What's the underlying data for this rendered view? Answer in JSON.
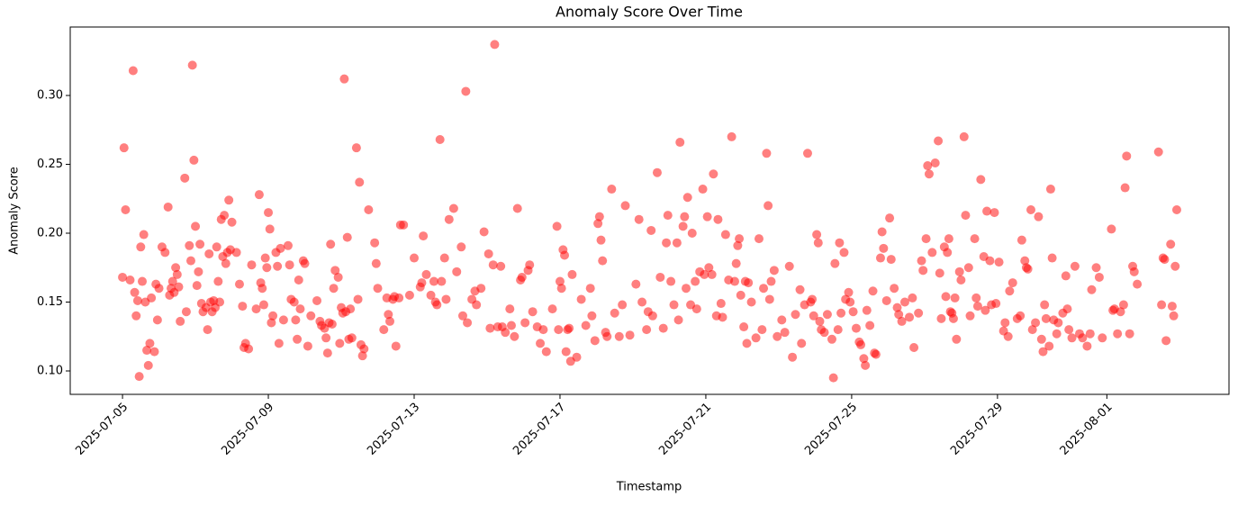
{
  "chart_data": {
    "type": "scatter",
    "title": "Anomaly Score Over Time",
    "x_label": "Timestamp",
    "y_label": "Anomaly Score",
    "color": "#ff0000",
    "alpha": 0.5,
    "grid": false,
    "xlim": [
      "2025-07-03 13:35",
      "2025-08-04 08:24"
    ],
    "xticks": [
      "2025-07-05",
      "2025-07-09",
      "2025-07-13",
      "2025-07-17",
      "2025-07-21",
      "2025-07-25",
      "2025-07-29",
      "2025-08-01"
    ],
    "ylim": [
      0.083,
      0.3497
    ],
    "yticks": [
      {
        "value": 0.1,
        "label": "0.10"
      },
      0.15,
      {
        "value": 0.2,
        "label": "0.20"
      },
      0.25,
      {
        "value": 0.3,
        "label": "0.30"
      }
    ],
    "x": [
      "2025-07-05 00:00",
      "2025-07-05 01:00",
      "2025-07-05 02:00",
      "2025-07-05 05:00",
      "2025-07-05 07:00",
      "2025-07-05 08:00",
      "2025-07-05 09:00",
      "2025-07-05 10:00",
      "2025-07-05 11:00",
      "2025-07-05 12:00",
      "2025-07-05 13:00",
      "2025-07-05 14:00",
      "2025-07-05 15:00",
      "2025-07-05 16:00",
      "2025-07-05 17:00",
      "2025-07-05 18:00",
      "2025-07-05 19:00",
      "2025-07-05 21:00",
      "2025-07-05 22:00",
      "2025-07-05 23:00",
      "2025-07-06 00:00",
      "2025-07-06 02:00",
      "2025-07-06 04:00",
      "2025-07-06 06:00",
      "2025-07-06 07:00",
      "2025-07-06 08:00",
      "2025-07-06 09:00",
      "2025-07-06 10:00",
      "2025-07-06 11:00",
      "2025-07-06 12:00",
      "2025-07-06 13:00",
      "2025-07-06 14:00",
      "2025-07-06 17:00",
      "2025-07-06 18:00",
      "2025-07-06 20:00",
      "2025-07-06 21:00",
      "2025-07-06 22:00",
      "2025-07-06 23:00",
      "2025-07-07 00:00",
      "2025-07-07 01:00",
      "2025-07-07 02:00",
      "2025-07-07 03:00",
      "2025-07-07 04:00",
      "2025-07-07 05:00",
      "2025-07-07 07:00",
      "2025-07-07 08:00",
      "2025-07-07 09:00",
      "2025-07-07 10:00",
      "2025-07-07 11:00",
      "2025-07-07 12:00",
      "2025-07-07 13:00",
      "2025-07-07 14:00",
      "2025-07-07 15:00",
      "2025-07-07 16:00",
      "2025-07-07 17:00",
      "2025-07-07 18:00",
      "2025-07-07 19:00",
      "2025-07-07 20:00",
      "2025-07-07 21:00",
      "2025-07-07 22:00",
      "2025-07-07 23:00",
      "2025-07-08 00:00",
      "2025-07-08 03:00",
      "2025-07-08 05:00",
      "2025-07-08 07:00",
      "2025-07-08 08:00",
      "2025-07-08 09:00",
      "2025-07-08 11:00",
      "2025-07-08 13:00",
      "2025-07-08 16:00",
      "2025-07-08 18:00",
      "2025-07-08 19:00",
      "2025-07-08 20:00",
      "2025-07-08 21:00",
      "2025-07-08 22:00",
      "2025-07-08 23:00",
      "2025-07-09 00:00",
      "2025-07-09 01:00",
      "2025-07-09 02:00",
      "2025-07-09 03:00",
      "2025-07-09 05:00",
      "2025-07-09 06:00",
      "2025-07-09 07:00",
      "2025-07-09 08:00",
      "2025-07-09 10:00",
      "2025-07-09 13:00",
      "2025-07-09 14:00",
      "2025-07-09 15:00",
      "2025-07-09 17:00",
      "2025-07-09 18:00",
      "2025-07-09 19:00",
      "2025-07-09 20:00",
      "2025-07-09 21:00",
      "2025-07-09 23:00",
      "2025-07-10 00:00",
      "2025-07-10 02:00",
      "2025-07-10 04:00",
      "2025-07-10 08:00",
      "2025-07-10 10:00",
      "2025-07-10 11:00",
      "2025-07-10 13:00",
      "2025-07-10 14:00",
      "2025-07-10 15:00",
      "2025-07-10 16:00",
      "2025-07-10 17:00",
      "2025-07-10 18:00",
      "2025-07-10 19:00",
      "2025-07-10 20:00",
      "2025-07-10 22:00",
      "2025-07-10 23:00",
      "2025-07-11 00:00",
      "2025-07-11 01:00",
      "2025-07-11 02:00",
      "2025-07-11 03:00",
      "2025-07-11 04:00",
      "2025-07-11 05:00",
      "2025-07-11 06:00",
      "2025-07-11 07:00",
      "2025-07-11 10:00",
      "2025-07-11 11:00",
      "2025-07-11 12:00",
      "2025-07-11 13:00",
      "2025-07-11 14:00",
      "2025-07-11 15:00",
      "2025-07-11 18:00",
      "2025-07-11 22:00",
      "2025-07-11 23:00",
      "2025-07-12 00:00",
      "2025-07-12 04:00",
      "2025-07-12 06:00",
      "2025-07-12 07:00",
      "2025-07-12 08:00",
      "2025-07-12 10:00",
      "2025-07-12 11:00",
      "2025-07-12 12:00",
      "2025-07-12 14:00",
      "2025-07-12 15:00",
      "2025-07-12 17:00",
      "2025-07-12 21:00",
      "2025-07-13 00:00",
      "2025-07-13 04:00",
      "2025-07-13 05:00",
      "2025-07-13 06:00",
      "2025-07-13 08:00",
      "2025-07-13 11:00",
      "2025-07-13 13:00",
      "2025-07-13 14:00",
      "2025-07-13 15:00",
      "2025-07-13 17:00",
      "2025-07-13 18:00",
      "2025-07-13 20:00",
      "2025-07-13 21:00",
      "2025-07-13 23:00",
      "2025-07-14 02:00",
      "2025-07-14 04:00",
      "2025-07-14 07:00",
      "2025-07-14 08:00",
      "2025-07-14 10:00",
      "2025-07-14 11:00",
      "2025-07-14 14:00",
      "2025-07-14 16:00",
      "2025-07-14 17:00",
      "2025-07-14 20:00",
      "2025-07-14 22:00",
      "2025-07-15 01:00",
      "2025-07-15 02:00",
      "2025-07-15 04:00",
      "2025-07-15 05:00",
      "2025-07-15 07:00",
      "2025-07-15 09:00",
      "2025-07-15 10:00",
      "2025-07-15 12:00",
      "2025-07-15 15:00",
      "2025-07-15 16:00",
      "2025-07-15 18:00",
      "2025-07-15 20:00",
      "2025-07-15 22:00",
      "2025-07-15 23:00",
      "2025-07-16 01:00",
      "2025-07-16 03:00",
      "2025-07-16 04:00",
      "2025-07-16 06:00",
      "2025-07-16 09:00",
      "2025-07-16 11:00",
      "2025-07-16 13:00",
      "2025-07-16 15:00",
      "2025-07-16 19:00",
      "2025-07-16 22:00",
      "2025-07-16 23:00",
      "2025-07-17 00:00",
      "2025-07-17 01:00",
      "2025-07-17 02:00",
      "2025-07-17 03:00",
      "2025-07-17 04:00",
      "2025-07-17 05:00",
      "2025-07-17 06:00",
      "2025-07-17 07:00",
      "2025-07-17 08:00",
      "2025-07-17 11:00",
      "2025-07-17 14:00",
      "2025-07-17 17:00",
      "2025-07-17 20:00",
      "2025-07-17 21:00",
      "2025-07-17 23:00",
      "2025-07-18 01:00",
      "2025-07-18 02:00",
      "2025-07-18 03:00",
      "2025-07-18 04:00",
      "2025-07-18 06:00",
      "2025-07-18 07:00",
      "2025-07-18 10:00",
      "2025-07-18 12:00",
      "2025-07-18 15:00",
      "2025-07-18 17:00",
      "2025-07-18 19:00",
      "2025-07-18 22:00",
      "2025-07-19 02:00",
      "2025-07-19 04:00",
      "2025-07-19 06:00",
      "2025-07-19 09:00",
      "2025-07-19 10:00",
      "2025-07-19 12:00",
      "2025-07-19 13:00",
      "2025-07-19 16:00",
      "2025-07-19 18:00",
      "2025-07-19 20:00",
      "2025-07-19 22:00",
      "2025-07-19 23:00",
      "2025-07-20 01:00",
      "2025-07-20 03:00",
      "2025-07-20 05:00",
      "2025-07-20 06:00",
      "2025-07-20 07:00",
      "2025-07-20 09:00",
      "2025-07-20 10:00",
      "2025-07-20 11:00",
      "2025-07-20 12:00",
      "2025-07-20 14:00",
      "2025-07-20 15:00",
      "2025-07-20 17:00",
      "2025-07-20 18:00",
      "2025-07-20 20:00",
      "2025-07-20 22:00",
      "2025-07-20 23:00",
      "2025-07-21 01:00",
      "2025-07-21 02:00",
      "2025-07-21 04:00",
      "2025-07-21 05:00",
      "2025-07-21 07:00",
      "2025-07-21 08:00",
      "2025-07-21 10:00",
      "2025-07-21 11:00",
      "2025-07-21 13:00",
      "2025-07-21 15:00",
      "2025-07-21 17:00",
      "2025-07-21 19:00",
      "2025-07-21 20:00",
      "2025-07-21 21:00",
      "2025-07-21 22:00",
      "2025-07-21 23:00",
      "2025-07-22 01:00",
      "2025-07-22 02:00",
      "2025-07-22 03:00",
      "2025-07-22 04:00",
      "2025-07-22 06:00",
      "2025-07-22 09:00",
      "2025-07-22 11:00",
      "2025-07-22 13:00",
      "2025-07-22 14:00",
      "2025-07-22 16:00",
      "2025-07-22 17:00",
      "2025-07-22 18:00",
      "2025-07-22 19:00",
      "2025-07-22 21:00",
      "2025-07-22 23:00",
      "2025-07-23 02:00",
      "2025-07-23 04:00",
      "2025-07-23 07:00",
      "2025-07-23 09:00",
      "2025-07-23 11:00",
      "2025-07-23 14:00",
      "2025-07-23 15:00",
      "2025-07-23 17:00",
      "2025-07-23 19:00",
      "2025-07-23 21:00",
      "2025-07-23 22:00",
      "2025-07-23 23:00",
      "2025-07-24 01:00",
      "2025-07-24 02:00",
      "2025-07-24 03:00",
      "2025-07-24 04:00",
      "2025-07-24 06:00",
      "2025-07-24 08:00",
      "2025-07-24 11:00",
      "2025-07-24 12:00",
      "2025-07-24 13:00",
      "2025-07-24 15:00",
      "2025-07-24 16:00",
      "2025-07-24 17:00",
      "2025-07-24 19:00",
      "2025-07-24 20:00",
      "2025-07-24 22:00",
      "2025-07-24 23:00",
      "2025-07-25 01:00",
      "2025-07-25 03:00",
      "2025-07-25 05:00",
      "2025-07-25 06:00",
      "2025-07-25 08:00",
      "2025-07-25 09:00",
      "2025-07-25 10:00",
      "2025-07-25 12:00",
      "2025-07-25 14:00",
      "2025-07-25 15:00",
      "2025-07-25 16:00",
      "2025-07-25 19:00",
      "2025-07-25 20:00",
      "2025-07-25 21:00",
      "2025-07-25 23:00",
      "2025-07-26 01:00",
      "2025-07-26 02:00",
      "2025-07-26 04:00",
      "2025-07-26 06:00",
      "2025-07-26 07:00",
      "2025-07-26 09:00",
      "2025-07-26 11:00",
      "2025-07-26 14:00",
      "2025-07-26 16:00",
      "2025-07-26 17:00",
      "2025-07-26 20:00",
      "2025-07-26 22:00",
      "2025-07-26 23:00",
      "2025-07-27 01:00",
      "2025-07-27 02:00",
      "2025-07-27 03:00",
      "2025-07-27 05:00",
      "2025-07-27 07:00",
      "2025-07-27 09:00",
      "2025-07-27 10:00",
      "2025-07-27 11:00",
      "2025-07-27 13:00",
      "2025-07-27 14:00",
      "2025-07-27 15:00",
      "2025-07-27 16:00",
      "2025-07-27 17:00",
      "2025-07-27 18:00",
      "2025-07-27 19:00",
      "2025-07-27 20:00",
      "2025-07-27 21:00",
      "2025-07-27 23:00",
      "2025-07-28 00:00",
      "2025-07-28 02:00",
      "2025-07-28 03:00",
      "2025-07-28 05:00",
      "2025-07-28 06:00",
      "2025-07-28 09:00",
      "2025-07-28 10:00",
      "2025-07-28 11:00",
      "2025-07-28 13:00",
      "2025-07-28 15:00",
      "2025-07-28 16:00",
      "2025-07-28 17:00",
      "2025-07-28 19:00",
      "2025-07-28 20:00",
      "2025-07-28 22:00",
      "2025-07-28 23:00",
      "2025-07-29 01:00",
      "2025-07-29 04:00",
      "2025-07-29 05:00",
      "2025-07-29 07:00",
      "2025-07-29 08:00",
      "2025-07-29 10:00",
      "2025-07-29 13:00",
      "2025-07-29 15:00",
      "2025-07-29 16:00",
      "2025-07-29 18:00",
      "2025-07-29 19:00",
      "2025-07-29 20:00",
      "2025-07-29 22:00",
      "2025-07-29 23:00",
      "2025-07-30 01:00",
      "2025-07-30 03:00",
      "2025-07-30 05:00",
      "2025-07-30 06:00",
      "2025-07-30 07:00",
      "2025-07-30 08:00",
      "2025-07-30 10:00",
      "2025-07-30 11:00",
      "2025-07-30 12:00",
      "2025-07-30 13:00",
      "2025-07-30 15:00",
      "2025-07-30 16:00",
      "2025-07-30 19:00",
      "2025-07-30 21:00",
      "2025-07-30 22:00",
      "2025-07-30 23:00",
      "2025-07-31 01:00",
      "2025-07-31 03:00",
      "2025-07-31 06:00",
      "2025-07-31 08:00",
      "2025-07-31 11:00",
      "2025-07-31 13:00",
      "2025-07-31 14:00",
      "2025-07-31 17:00",
      "2025-07-31 19:00",
      "2025-07-31 21:00",
      "2025-08-01 03:00",
      "2025-08-01 04:00",
      "2025-08-01 05:00",
      "2025-08-01 07:00",
      "2025-08-01 09:00",
      "2025-08-01 11:00",
      "2025-08-01 12:00",
      "2025-08-01 13:00",
      "2025-08-01 15:00",
      "2025-08-01 17:00",
      "2025-08-01 18:00",
      "2025-08-01 20:00",
      "2025-08-02 10:00",
      "2025-08-02 12:00",
      "2025-08-02 13:00",
      "2025-08-02 14:00",
      "2025-08-02 15:00",
      "2025-08-02 18:00",
      "2025-08-02 19:00",
      "2025-08-02 20:00",
      "2025-08-02 21:00",
      "2025-08-02 22:00"
    ],
    "values": [
      0.168,
      0.262,
      0.217,
      0.166,
      0.318,
      0.157,
      0.14,
      0.151,
      0.096,
      0.19,
      0.165,
      0.199,
      0.15,
      0.115,
      0.104,
      0.12,
      0.153,
      0.114,
      0.163,
      0.137,
      0.16,
      0.19,
      0.186,
      0.219,
      0.155,
      0.16,
      0.165,
      0.157,
      0.175,
      0.17,
      0.161,
      0.136,
      0.24,
      0.143,
      0.191,
      0.18,
      0.322,
      0.253,
      0.205,
      0.162,
      0.172,
      0.192,
      0.149,
      0.143,
      0.146,
      0.13,
      0.185,
      0.15,
      0.143,
      0.151,
      0.146,
      0.19,
      0.165,
      0.15,
      0.21,
      0.183,
      0.213,
      0.178,
      0.186,
      0.224,
      0.188,
      0.208,
      0.186,
      0.163,
      0.147,
      0.117,
      0.12,
      0.116,
      0.177,
      0.145,
      0.228,
      0.164,
      0.16,
      0.148,
      0.182,
      0.175,
      0.215,
      0.203,
      0.135,
      0.14,
      0.186,
      0.176,
      0.12,
      0.189,
      0.137,
      0.191,
      0.177,
      0.152,
      0.15,
      0.137,
      0.123,
      0.166,
      0.145,
      0.18,
      0.178,
      0.118,
      0.14,
      0.151,
      0.136,
      0.133,
      0.131,
      0.124,
      0.113,
      0.135,
      0.192,
      0.134,
      0.16,
      0.173,
      0.168,
      0.12,
      0.146,
      0.142,
      0.312,
      0.143,
      0.197,
      0.123,
      0.145,
      0.124,
      0.262,
      0.152,
      0.237,
      0.119,
      0.111,
      0.116,
      0.217,
      0.193,
      0.178,
      0.16,
      0.13,
      0.153,
      0.141,
      0.136,
      0.152,
      0.154,
      0.118,
      0.153,
      0.206,
      0.206,
      0.155,
      0.182,
      0.161,
      0.164,
      0.198,
      0.17,
      0.155,
      0.165,
      0.15,
      0.148,
      0.268,
      0.165,
      0.182,
      0.152,
      0.21,
      0.218,
      0.172,
      0.19,
      0.14,
      0.303,
      0.135,
      0.152,
      0.158,
      0.148,
      0.16,
      0.201,
      0.185,
      0.131,
      0.177,
      0.337,
      0.132,
      0.176,
      0.132,
      0.128,
      0.145,
      0.133,
      0.125,
      0.218,
      0.166,
      0.168,
      0.135,
      0.173,
      0.177,
      0.143,
      0.132,
      0.12,
      0.13,
      0.114,
      0.145,
      0.205,
      0.13,
      0.165,
      0.16,
      0.188,
      0.184,
      0.114,
      0.13,
      0.131,
      0.107,
      0.17,
      0.11,
      0.152,
      0.133,
      0.16,
      0.14,
      0.122,
      0.207,
      0.212,
      0.195,
      0.18,
      0.128,
      0.125,
      0.232,
      0.142,
      0.125,
      0.148,
      0.22,
      0.126,
      0.163,
      0.21,
      0.15,
      0.13,
      0.143,
      0.202,
      0.14,
      0.244,
      0.168,
      0.131,
      0.193,
      0.213,
      0.165,
      0.148,
      0.193,
      0.137,
      0.266,
      0.205,
      0.212,
      0.16,
      0.226,
      0.148,
      0.2,
      0.165,
      0.145,
      0.172,
      0.232,
      0.17,
      0.212,
      0.175,
      0.17,
      0.243,
      0.14,
      0.21,
      0.149,
      0.139,
      0.199,
      0.166,
      0.27,
      0.165,
      0.178,
      0.191,
      0.196,
      0.155,
      0.132,
      0.165,
      0.12,
      0.164,
      0.15,
      0.124,
      0.196,
      0.13,
      0.16,
      0.258,
      0.22,
      0.152,
      0.165,
      0.173,
      0.125,
      0.137,
      0.128,
      0.176,
      0.11,
      0.141,
      0.159,
      0.12,
      0.148,
      0.258,
      0.15,
      0.152,
      0.14,
      0.199,
      0.193,
      0.136,
      0.13,
      0.128,
      0.141,
      0.123,
      0.095,
      0.178,
      0.13,
      0.193,
      0.142,
      0.186,
      0.152,
      0.157,
      0.15,
      0.143,
      0.131,
      0.121,
      0.119,
      0.109,
      0.104,
      0.144,
      0.133,
      0.158,
      0.113,
      0.112,
      0.182,
      0.201,
      0.189,
      0.151,
      0.211,
      0.181,
      0.16,
      0.146,
      0.141,
      0.136,
      0.15,
      0.139,
      0.153,
      0.117,
      0.142,
      0.18,
      0.173,
      0.196,
      0.249,
      0.243,
      0.186,
      0.251,
      0.267,
      0.171,
      0.138,
      0.19,
      0.154,
      0.186,
      0.196,
      0.143,
      0.142,
      0.138,
      0.153,
      0.123,
      0.172,
      0.166,
      0.27,
      0.213,
      0.175,
      0.14,
      0.196,
      0.153,
      0.147,
      0.239,
      0.183,
      0.144,
      0.216,
      0.18,
      0.148,
      0.215,
      0.149,
      0.179,
      0.129,
      0.135,
      0.125,
      0.158,
      0.164,
      0.138,
      0.14,
      0.195,
      0.18,
      0.175,
      0.174,
      0.217,
      0.13,
      0.135,
      0.212,
      0.123,
      0.114,
      0.148,
      0.138,
      0.118,
      0.232,
      0.182,
      0.137,
      0.127,
      0.135,
      0.142,
      0.169,
      0.145,
      0.13,
      0.124,
      0.176,
      0.127,
      0.124,
      0.118,
      0.127,
      0.159,
      0.175,
      0.168,
      0.124,
      0.203,
      0.144,
      0.145,
      0.127,
      0.143,
      0.148,
      0.233,
      0.256,
      0.127,
      0.176,
      0.172,
      0.163,
      0.259,
      0.148,
      0.182,
      0.181,
      0.122,
      0.192,
      0.147,
      0.14,
      0.176,
      0.217
    ]
  }
}
